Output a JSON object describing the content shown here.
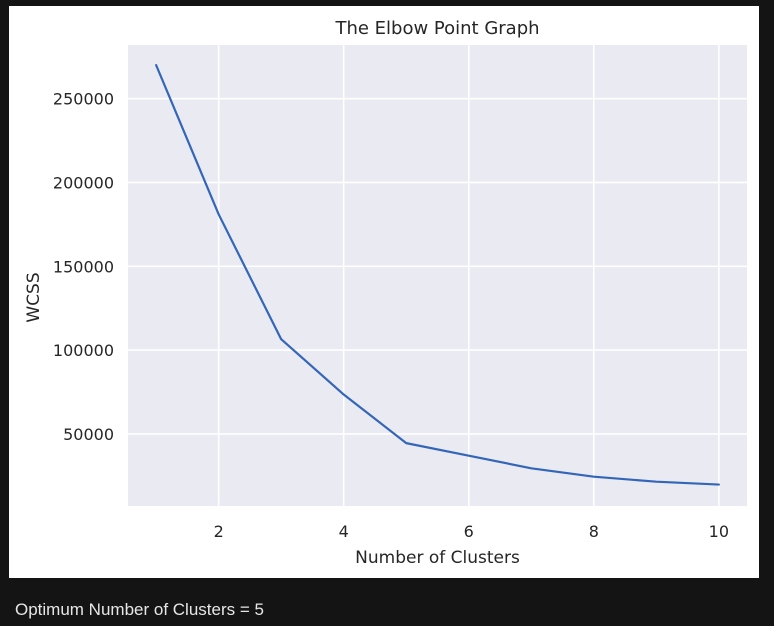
{
  "chart_data": {
    "type": "line",
    "title": "The Elbow Point Graph",
    "xlabel": "Number of Clusters",
    "ylabel": "WCSS",
    "x": [
      1,
      2,
      3,
      4,
      5,
      6,
      7,
      8,
      9,
      10
    ],
    "series": [
      {
        "values": [
          270000,
          181000,
          106500,
          73500,
          44500,
          37000,
          29500,
          24500,
          21500,
          19800
        ]
      }
    ],
    "xticks": [
      2,
      4,
      6,
      8,
      10
    ],
    "xtick_labels": [
      "2",
      "4",
      "6",
      "8",
      "10"
    ],
    "yticks": [
      50000,
      100000,
      150000,
      200000,
      250000
    ],
    "ytick_labels": [
      "50000",
      "100000",
      "150000",
      "200000",
      "250000"
    ],
    "xlim": [
      0.55,
      10.45
    ],
    "ylim": [
      7000,
      282000
    ],
    "grid": true,
    "colors": {
      "line": "#3366b8",
      "plot_background": "#eaeaf2",
      "grid": "#ffffff"
    }
  },
  "output": {
    "text": "Optimum Number of Clusters = 5"
  }
}
